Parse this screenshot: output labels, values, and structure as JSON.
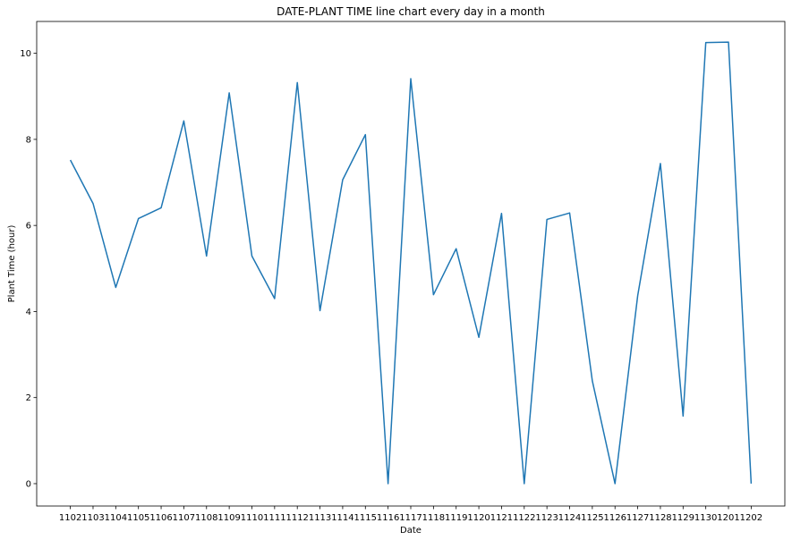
{
  "chart_data": {
    "type": "line",
    "title": "DATE-PLANT TIME line chart every day in a month",
    "xlabel": "Date",
    "ylabel": "Plant Time (hour)",
    "ylim": [
      -0.52,
      10.74
    ],
    "yticks": [
      "0",
      "2",
      "4",
      "6",
      "8",
      "10"
    ],
    "grid": false,
    "categories": [
      "1102",
      "1103",
      "1104",
      "1105",
      "1106",
      "1107",
      "1108",
      "1109",
      "1110",
      "1111",
      "1112",
      "1113",
      "1114",
      "1115",
      "1116",
      "1117",
      "1118",
      "1119",
      "1120",
      "1121",
      "1122",
      "1123",
      "1124",
      "1125",
      "1126",
      "1127",
      "1128",
      "1129",
      "1130",
      "1201",
      "1202"
    ],
    "series": [
      {
        "color": "#1f77b4",
        "values": [
          7.52,
          6.51,
          4.56,
          6.16,
          6.41,
          8.43,
          5.29,
          9.08,
          5.29,
          4.3,
          9.32,
          4.02,
          7.06,
          8.11,
          0.0,
          9.41,
          4.39,
          5.46,
          3.4,
          6.28,
          0.0,
          6.14,
          6.29,
          2.39,
          0.0,
          4.37,
          7.44,
          1.57,
          10.25,
          10.26,
          0.0
        ]
      }
    ]
  }
}
